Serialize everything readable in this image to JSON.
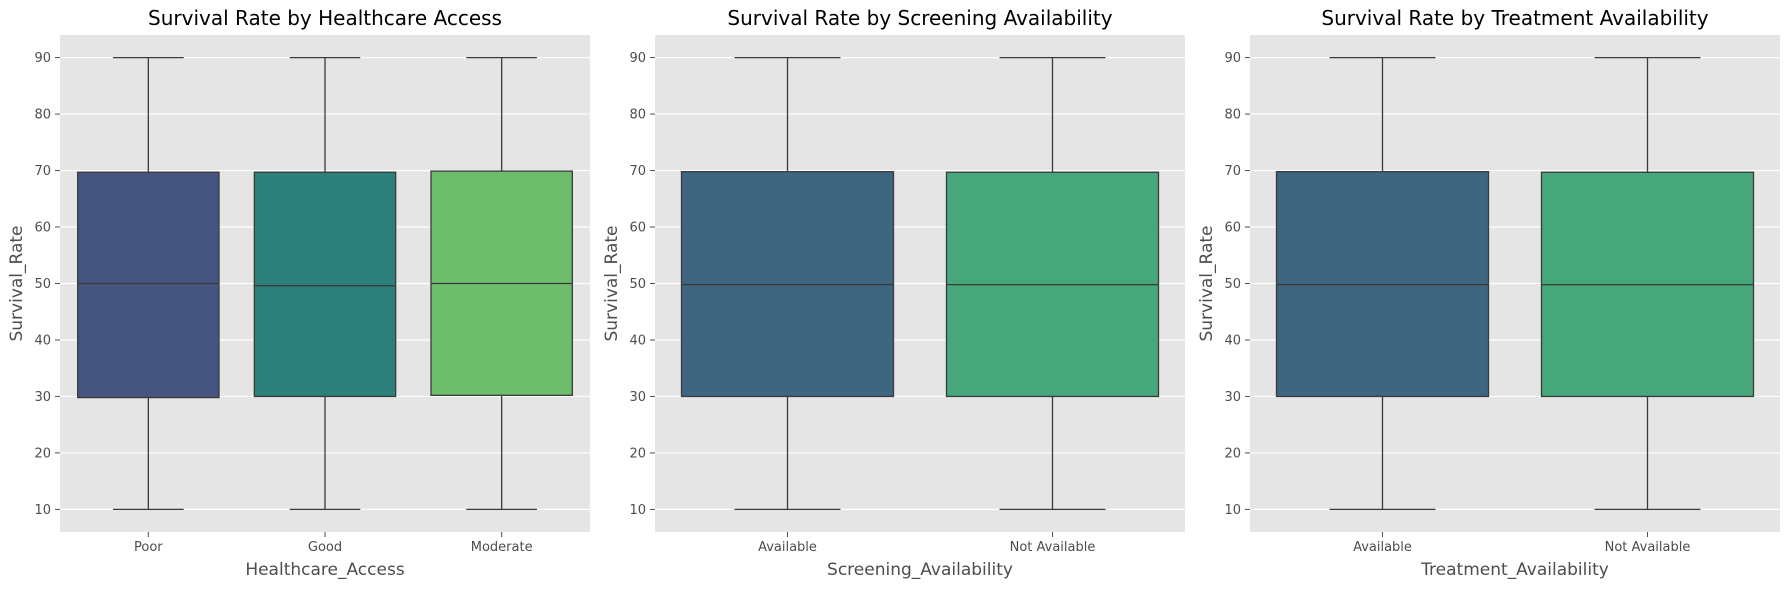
{
  "chart_data": [
    {
      "type": "box",
      "title": "Survival Rate by Healthcare Access",
      "xlabel": "Healthcare_Access",
      "ylabel": "Survival_Rate",
      "ylim": [
        6,
        94
      ],
      "yticks": [
        10,
        20,
        30,
        40,
        50,
        60,
        70,
        80,
        90
      ],
      "grid": true,
      "categories": [
        "Poor",
        "Good",
        "Moderate"
      ],
      "boxes": [
        {
          "category": "Poor",
          "min": 10,
          "q1": 29.8,
          "median": 50.0,
          "q3": 69.7,
          "max": 90,
          "color": "#46557f"
        },
        {
          "category": "Good",
          "min": 10,
          "q1": 30.0,
          "median": 49.6,
          "q3": 69.7,
          "max": 90,
          "color": "#2c8079"
        },
        {
          "category": "Moderate",
          "min": 10,
          "q1": 30.2,
          "median": 50.0,
          "q3": 69.9,
          "max": 90,
          "color": "#6dbd6d"
        }
      ]
    },
    {
      "type": "box",
      "title": "Survival Rate by Screening Availability",
      "xlabel": "Screening_Availability",
      "ylabel": "Survival_Rate",
      "ylim": [
        6,
        94
      ],
      "yticks": [
        10,
        20,
        30,
        40,
        50,
        60,
        70,
        80,
        90
      ],
      "grid": true,
      "categories": [
        "Available",
        "Not Available"
      ],
      "boxes": [
        {
          "category": "Available",
          "min": 10,
          "q1": 30.0,
          "median": 49.8,
          "q3": 69.8,
          "max": 90,
          "color": "#3e6681"
        },
        {
          "category": "Not Available",
          "min": 10,
          "q1": 30.0,
          "median": 49.8,
          "q3": 69.7,
          "max": 90,
          "color": "#46a77a"
        }
      ]
    },
    {
      "type": "box",
      "title": "Survival Rate by Treatment Availability",
      "xlabel": "Treatment_Availability",
      "ylabel": "Survival_Rate",
      "ylim": [
        6,
        94
      ],
      "yticks": [
        10,
        20,
        30,
        40,
        50,
        60,
        70,
        80,
        90
      ],
      "grid": true,
      "categories": [
        "Available",
        "Not Available"
      ],
      "boxes": [
        {
          "category": "Available",
          "min": 10,
          "q1": 30.0,
          "median": 49.8,
          "q3": 69.8,
          "max": 90,
          "color": "#3e6681"
        },
        {
          "category": "Not Available",
          "min": 10,
          "q1": 30.0,
          "median": 49.8,
          "q3": 69.7,
          "max": 90,
          "color": "#46a77a"
        }
      ]
    }
  ],
  "style": {
    "plot_background": "#e5e5e5",
    "grid_color": "#ffffff",
    "line_color": "#3a3a3a"
  }
}
